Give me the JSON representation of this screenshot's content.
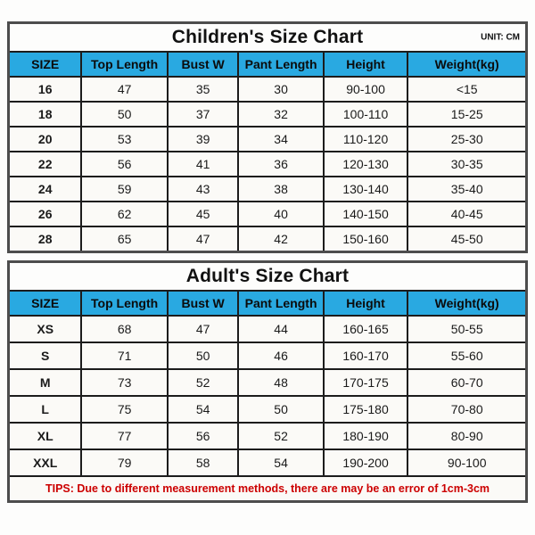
{
  "unit_label": "UNIT: CM",
  "tips": {
    "text": "TIPS: Due to different measurement methods, there are may be an error of 1cm-3cm"
  },
  "colors": {
    "header_bg": "#29a9e1",
    "tips_red": "#cc0000",
    "outer_border": "#4d4d4d",
    "grid_border": "#1c1c1c",
    "cell_bg": "#fbfaf7"
  },
  "chart_data": [
    {
      "type": "table",
      "title": "Children's Size Chart",
      "unit": "CM",
      "columns": [
        "SIZE",
        "Top Length",
        "Bust W",
        "Pant Length",
        "Height",
        "Weight(kg)"
      ],
      "rows": [
        [
          "16",
          "47",
          "35",
          "30",
          "90-100",
          "<15"
        ],
        [
          "18",
          "50",
          "37",
          "32",
          "100-110",
          "15-25"
        ],
        [
          "20",
          "53",
          "39",
          "34",
          "110-120",
          "25-30"
        ],
        [
          "22",
          "56",
          "41",
          "36",
          "120-130",
          "30-35"
        ],
        [
          "24",
          "59",
          "43",
          "38",
          "130-140",
          "35-40"
        ],
        [
          "26",
          "62",
          "45",
          "40",
          "140-150",
          "40-45"
        ],
        [
          "28",
          "65",
          "47",
          "42",
          "150-160",
          "45-50"
        ]
      ]
    },
    {
      "type": "table",
      "title": "Adult's Size Chart",
      "unit": "CM",
      "columns": [
        "SIZE",
        "Top Length",
        "Bust W",
        "Pant Length",
        "Height",
        "Weight(kg)"
      ],
      "rows": [
        [
          "XS",
          "68",
          "47",
          "44",
          "160-165",
          "50-55"
        ],
        [
          "S",
          "71",
          "50",
          "46",
          "160-170",
          "55-60"
        ],
        [
          "M",
          "73",
          "52",
          "48",
          "170-175",
          "60-70"
        ],
        [
          "L",
          "75",
          "54",
          "50",
          "175-180",
          "70-80"
        ],
        [
          "XL",
          "77",
          "56",
          "52",
          "180-190",
          "80-90"
        ],
        [
          "XXL",
          "79",
          "58",
          "54",
          "190-200",
          "90-100"
        ]
      ]
    }
  ]
}
